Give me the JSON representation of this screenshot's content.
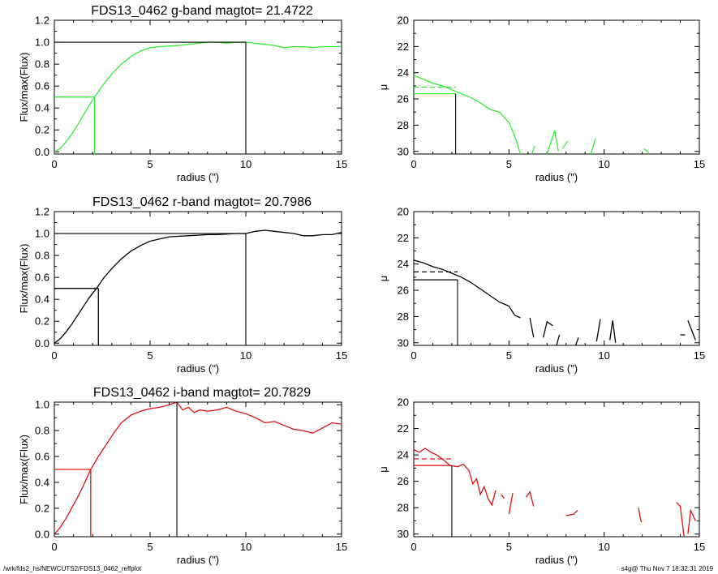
{
  "footer": {
    "left": "/wrk/fds2_hs/NEWCUTS2/FDS13_0462_reffplot",
    "right": "s4g@  Thu Nov  7 18:32:31 2019"
  },
  "chart_data": [
    {
      "id": "g-growth",
      "type": "line",
      "title": "FDS13_0462 g-band  magtot=      21.4722",
      "xlabel": "radius (\")",
      "ylabel": "Flux/max(Flux)",
      "xlim": [
        0,
        15
      ],
      "ylim": [
        -0.02,
        1.2
      ],
      "xticks": [
        "0",
        "5",
        "10",
        "15"
      ],
      "yticks": [
        "0.0",
        "0.2",
        "0.4",
        "0.6",
        "0.8",
        "1.0",
        "1.2"
      ],
      "color": "#33ee33",
      "x": [
        0.0,
        0.3,
        0.6,
        0.9,
        1.2,
        1.5,
        1.8,
        2.1,
        2.5,
        3.0,
        3.5,
        4.0,
        4.5,
        5.0,
        5.5,
        6.0,
        6.5,
        7.0,
        7.5,
        8.0,
        8.5,
        9.0,
        9.5,
        10.0,
        10.5,
        11.0,
        11.5,
        12.0,
        12.5,
        13.0,
        13.5,
        14.0,
        14.5,
        15.0
      ],
      "y": [
        0.0,
        0.03,
        0.09,
        0.16,
        0.24,
        0.33,
        0.42,
        0.5,
        0.6,
        0.71,
        0.8,
        0.87,
        0.92,
        0.95,
        0.96,
        0.965,
        0.97,
        0.98,
        0.99,
        1.0,
        1.0,
        0.99,
        1.0,
        1.0,
        0.99,
        0.98,
        0.97,
        0.95,
        0.96,
        0.96,
        0.95,
        0.96,
        0.96,
        0.96
      ],
      "guides": {
        "half_radius": 2.1,
        "half_value": 0.5,
        "total_radius": 10.0,
        "total_value": 1.0
      }
    },
    {
      "id": "g-profile",
      "type": "line",
      "title": "",
      "xlabel": "radius (\")",
      "ylabel": "μ",
      "xlim": [
        0,
        15
      ],
      "ylim": [
        30.2,
        20
      ],
      "xticks": [
        "0",
        "5",
        "10",
        "15"
      ],
      "yticks": [
        "20",
        "22",
        "24",
        "26",
        "28",
        "30"
      ],
      "color": "#33ee33",
      "segments": [
        [
          [
            0.0,
            24.2
          ],
          [
            0.5,
            24.5
          ],
          [
            1.0,
            24.8
          ],
          [
            1.5,
            25.0
          ],
          [
            2.0,
            25.3
          ],
          [
            2.5,
            25.6
          ],
          [
            3.0,
            25.9
          ],
          [
            3.5,
            26.3
          ],
          [
            4.0,
            26.8
          ],
          [
            4.5,
            27.0
          ],
          [
            5.0,
            27.8
          ],
          [
            5.3,
            28.8
          ],
          [
            5.6,
            30.2
          ]
        ],
        [
          [
            6.2,
            30.2
          ],
          [
            6.35,
            29.6
          ]
        ],
        [
          [
            7.0,
            30.2
          ],
          [
            7.4,
            28.4
          ],
          [
            7.6,
            30.0
          ]
        ],
        [
          [
            7.8,
            29.8
          ],
          [
            8.1,
            29.2
          ]
        ],
        [
          [
            9.3,
            30.2
          ],
          [
            9.55,
            29.0
          ]
        ],
        [
          [
            12.1,
            29.8
          ],
          [
            12.35,
            30.1
          ]
        ]
      ],
      "dashed": {
        "x": [
          0.0,
          2.2
        ],
        "y": 25.1
      },
      "guides": {
        "radius": 2.2,
        "value": 25.6
      }
    },
    {
      "id": "r-growth",
      "type": "line",
      "title": "FDS13_0462 r-band  magtot=      20.7986",
      "xlabel": "radius (\")",
      "ylabel": "Flux/max(Flux)",
      "xlim": [
        0,
        15
      ],
      "ylim": [
        -0.02,
        1.2
      ],
      "xticks": [
        "0",
        "5",
        "10",
        "15"
      ],
      "yticks": [
        "0.0",
        "0.2",
        "0.4",
        "0.6",
        "0.8",
        "1.0",
        "1.2"
      ],
      "color": "#000000",
      "x": [
        0.0,
        0.3,
        0.6,
        0.9,
        1.2,
        1.5,
        1.8,
        2.2,
        2.6,
        3.0,
        3.5,
        4.0,
        4.5,
        5.0,
        5.5,
        6.0,
        6.5,
        7.0,
        7.5,
        8.0,
        8.5,
        9.0,
        9.5,
        10.0,
        10.5,
        11.0,
        11.5,
        12.0,
        12.5,
        13.0,
        13.5,
        14.0,
        14.5,
        15.0
      ],
      "y": [
        0.0,
        0.04,
        0.1,
        0.17,
        0.25,
        0.33,
        0.41,
        0.5,
        0.6,
        0.68,
        0.77,
        0.84,
        0.89,
        0.93,
        0.95,
        0.97,
        0.975,
        0.98,
        0.985,
        0.99,
        0.99,
        0.995,
        1.0,
        1.0,
        1.02,
        1.03,
        1.02,
        1.01,
        1.0,
        0.98,
        0.98,
        0.99,
        0.99,
        1.01
      ],
      "guides": {
        "half_radius": 2.3,
        "half_value": 0.5,
        "total_radius": 10.0,
        "total_value": 1.0
      }
    },
    {
      "id": "r-profile",
      "type": "line",
      "title": "",
      "xlabel": "radius (\")",
      "ylabel": "μ",
      "xlim": [
        0,
        15
      ],
      "ylim": [
        30.2,
        20
      ],
      "xticks": [
        "0",
        "5",
        "10",
        "15"
      ],
      "yticks": [
        "20",
        "22",
        "24",
        "26",
        "28",
        "30"
      ],
      "color": "#000000",
      "segments": [
        [
          [
            0.0,
            23.7
          ],
          [
            0.5,
            23.9
          ],
          [
            1.0,
            24.2
          ],
          [
            1.5,
            24.4
          ],
          [
            2.0,
            24.7
          ],
          [
            2.5,
            25.0
          ],
          [
            3.0,
            25.4
          ],
          [
            3.5,
            25.9
          ],
          [
            4.0,
            26.4
          ],
          [
            4.5,
            26.9
          ],
          [
            5.0,
            27.2
          ],
          [
            5.3,
            27.9
          ],
          [
            5.6,
            28.1
          ]
        ],
        [
          [
            6.1,
            28.1
          ],
          [
            6.3,
            29.6
          ]
        ],
        [
          [
            6.8,
            29.6
          ],
          [
            7.0,
            28.4
          ],
          [
            7.3,
            28.7
          ]
        ],
        [
          [
            7.5,
            30.2
          ],
          [
            7.65,
            29.4
          ]
        ],
        [
          [
            8.5,
            30.2
          ],
          [
            8.65,
            29.6
          ]
        ],
        [
          [
            9.6,
            29.9
          ],
          [
            9.8,
            28.2
          ]
        ],
        [
          [
            10.3,
            29.8
          ],
          [
            10.45,
            28.3
          ],
          [
            10.6,
            30.0
          ]
        ],
        [
          [
            14.4,
            28.3
          ],
          [
            14.8,
            29.8
          ]
        ]
      ],
      "dashed": {
        "x": [
          0.0,
          2.3
        ],
        "y": 24.6
      },
      "short_dash": {
        "x": [
          14.0,
          14.25
        ],
        "y": 29.4
      },
      "guides": {
        "radius": 2.3,
        "value": 25.2
      }
    },
    {
      "id": "i-growth",
      "type": "line",
      "title": "FDS13_0462 i-band  magtot=      20.7829",
      "xlabel": "radius (\")",
      "ylabel": "Flux/max(Flux)",
      "xlim": [
        0,
        15
      ],
      "ylim": [
        -0.02,
        1.02
      ],
      "xticks": [
        "0",
        "5",
        "10",
        "15"
      ],
      "yticks": [
        "0.0",
        "0.2",
        "0.4",
        "0.6",
        "0.8",
        "1.0"
      ],
      "color": "#dd1111",
      "x": [
        0.0,
        0.3,
        0.6,
        0.9,
        1.2,
        1.5,
        1.9,
        2.3,
        2.7,
        3.1,
        3.5,
        4.0,
        4.5,
        5.0,
        5.5,
        6.0,
        6.4,
        6.7,
        7.0,
        7.3,
        7.6,
        8.0,
        8.5,
        9.0,
        9.5,
        10.0,
        10.5,
        11.0,
        11.5,
        12.0,
        12.5,
        13.0,
        13.5,
        14.0,
        14.5,
        15.0
      ],
      "y": [
        0.0,
        0.05,
        0.12,
        0.2,
        0.28,
        0.37,
        0.5,
        0.6,
        0.69,
        0.78,
        0.86,
        0.92,
        0.95,
        0.97,
        0.98,
        1.0,
        1.02,
        0.96,
        0.98,
        0.94,
        0.96,
        0.95,
        0.96,
        0.98,
        0.95,
        0.93,
        0.9,
        0.86,
        0.87,
        0.84,
        0.81,
        0.8,
        0.78,
        0.82,
        0.86,
        0.85
      ],
      "guides": {
        "half_radius": 1.9,
        "half_value": 0.5,
        "total_radius": 6.4,
        "total_value": 1.02
      }
    },
    {
      "id": "i-profile",
      "type": "line",
      "title": "",
      "xlabel": "radius (\")",
      "ylabel": "μ",
      "xlim": [
        0,
        15
      ],
      "ylim": [
        30.2,
        20
      ],
      "xticks": [
        "0",
        "5",
        "10",
        "15"
      ],
      "yticks": [
        "20",
        "22",
        "24",
        "26",
        "28",
        "30"
      ],
      "color": "#dd1111",
      "segments": [
        [
          [
            0.0,
            23.6
          ],
          [
            0.3,
            23.8
          ],
          [
            0.6,
            23.5
          ],
          [
            0.9,
            23.8
          ],
          [
            1.2,
            24.0
          ],
          [
            1.5,
            24.3
          ],
          [
            1.9,
            24.8
          ],
          [
            2.3,
            24.9
          ],
          [
            2.6,
            24.7
          ],
          [
            2.9,
            25.2
          ],
          [
            3.1,
            26.2
          ],
          [
            3.3,
            25.8
          ],
          [
            3.5,
            27.0
          ],
          [
            3.7,
            26.4
          ],
          [
            3.9,
            27.3
          ],
          [
            4.1,
            27.8
          ],
          [
            4.3,
            26.7
          ]
        ],
        [
          [
            4.6,
            27.0
          ],
          [
            4.75,
            27.3
          ]
        ],
        [
          [
            5.0,
            28.5
          ],
          [
            5.2,
            26.9
          ]
        ],
        [
          [
            5.9,
            27.2
          ],
          [
            6.1,
            26.8
          ],
          [
            6.3,
            27.9
          ]
        ],
        [
          [
            8.0,
            28.6
          ],
          [
            8.4,
            28.5
          ],
          [
            8.6,
            28.2
          ]
        ],
        [
          [
            11.8,
            28.0
          ],
          [
            11.95,
            29.1
          ]
        ],
        [
          [
            13.8,
            27.6
          ],
          [
            14.0,
            27.9
          ],
          [
            14.2,
            30.2
          ]
        ],
        [
          [
            14.4,
            30.0
          ],
          [
            14.55,
            28.2
          ],
          [
            14.8,
            29.0
          ]
        ]
      ],
      "dashed": {
        "x": [
          0.0,
          2.0
        ],
        "y": 24.3
      },
      "guides": {
        "radius": 2.0,
        "value": 24.8
      }
    }
  ]
}
